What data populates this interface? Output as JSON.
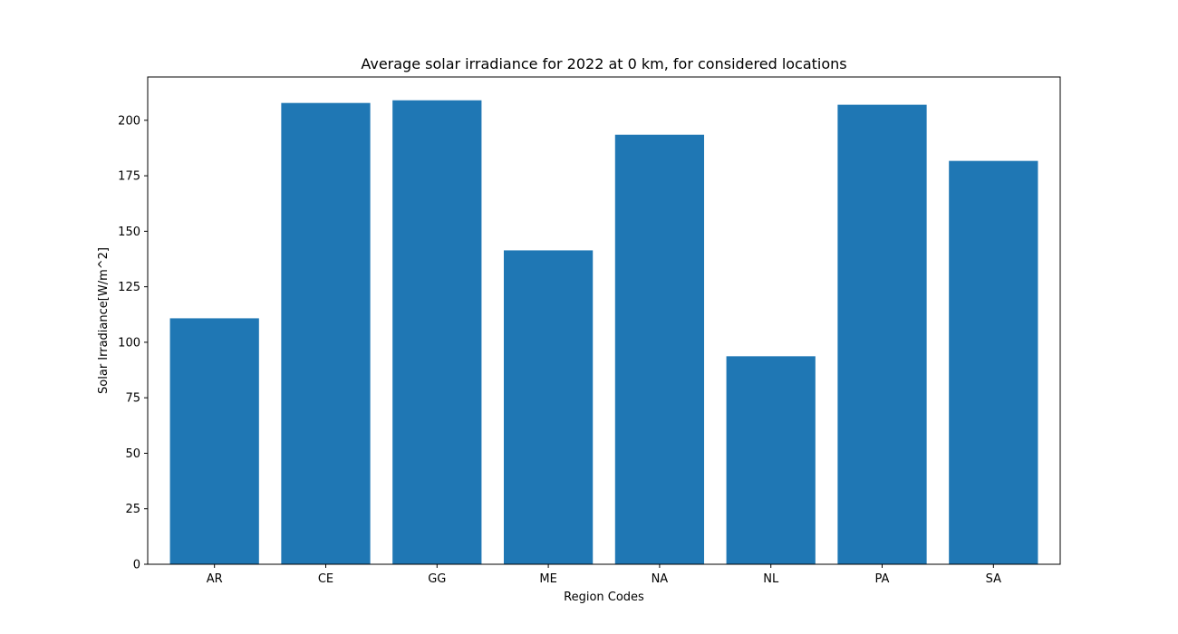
{
  "chart_data": {
    "type": "bar",
    "title": "Average solar irradiance for 2022 at 0 km, for considered locations",
    "xlabel": "Region Codes",
    "ylabel": "Solar Irradiance[W/m^2]",
    "categories": [
      "AR",
      "CE",
      "GG",
      "ME",
      "NA",
      "NL",
      "PA",
      "SA"
    ],
    "values": [
      110.8,
      207.8,
      209.0,
      141.4,
      193.5,
      93.7,
      207.0,
      181.7
    ],
    "ylim": [
      0,
      219.5
    ],
    "yticks": [
      0,
      25,
      50,
      75,
      100,
      125,
      150,
      175,
      200
    ],
    "bar_color": "#1f77b4",
    "grid": false,
    "legend": "none"
  }
}
